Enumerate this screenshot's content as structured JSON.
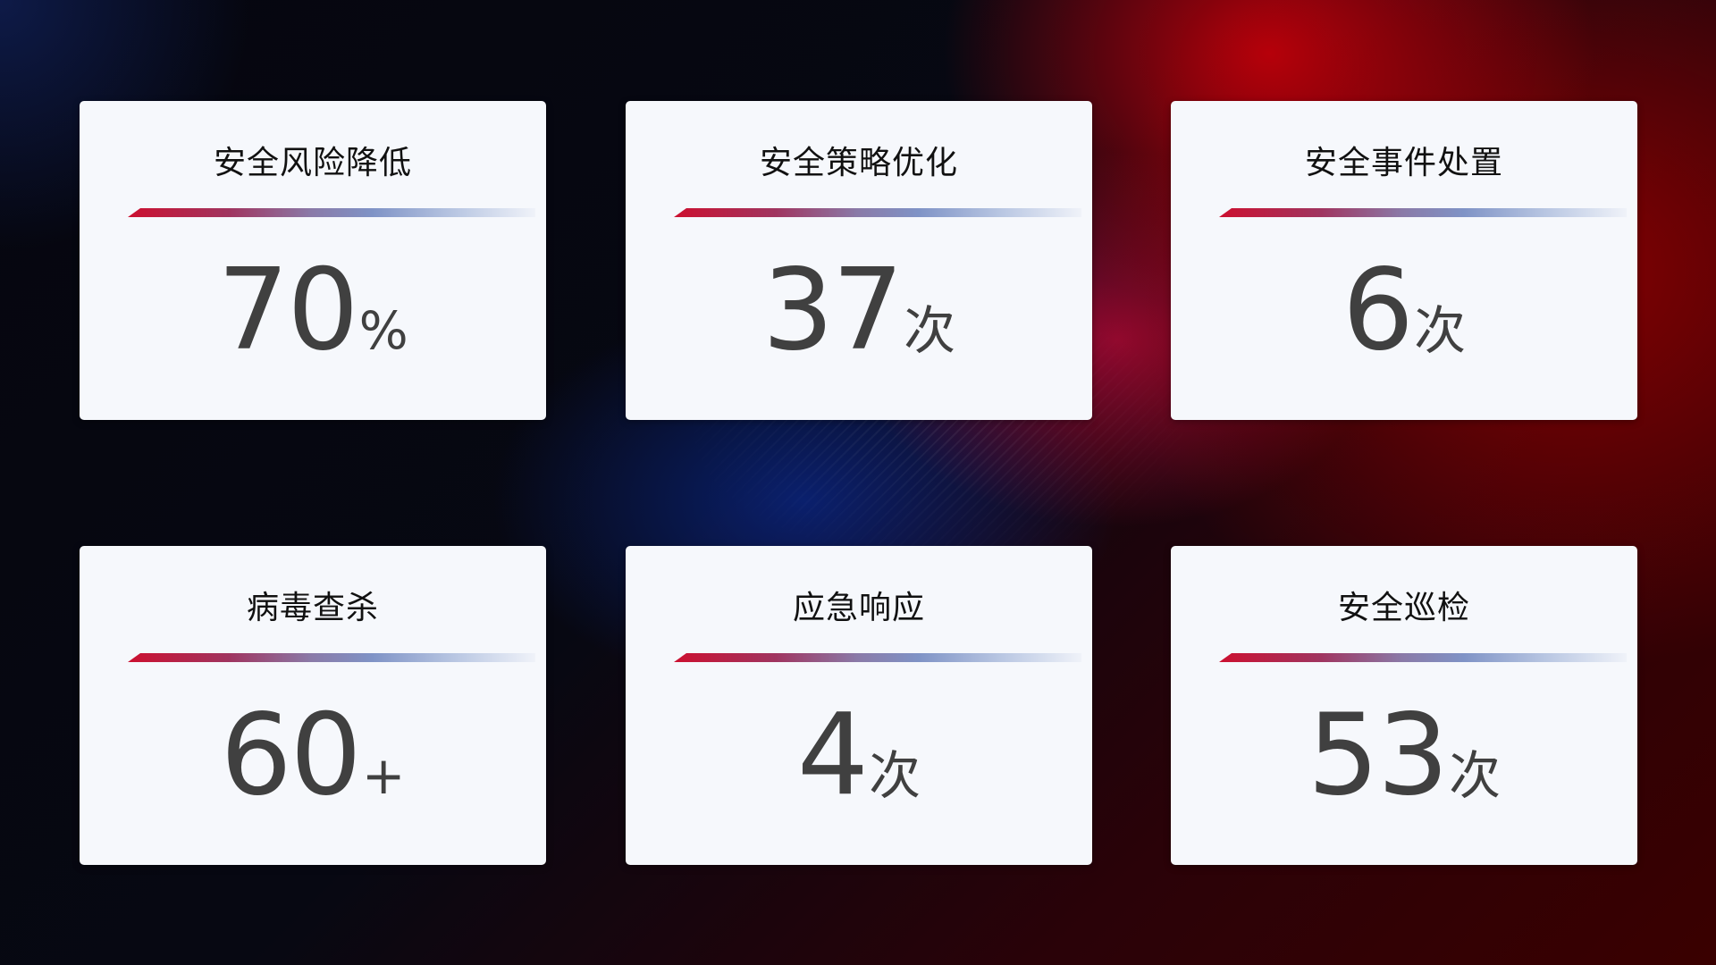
{
  "cards": [
    {
      "title": "安全风险降低",
      "value": "70",
      "unit": "%"
    },
    {
      "title": "安全策略优化",
      "value": "37",
      "unit": "次"
    },
    {
      "title": "安全事件处置",
      "value": "6",
      "unit": "次"
    },
    {
      "title": "病毒查杀",
      "value": "60",
      "unit": "+"
    },
    {
      "title": "应急响应",
      "value": "4",
      "unit": "次"
    },
    {
      "title": "安全巡检",
      "value": "53",
      "unit": "次"
    }
  ],
  "colors": {
    "accent_red": "#cc1030",
    "accent_blue": "#7f93c6",
    "card_bg": "#f6f8fc",
    "value_text": "#404040"
  }
}
